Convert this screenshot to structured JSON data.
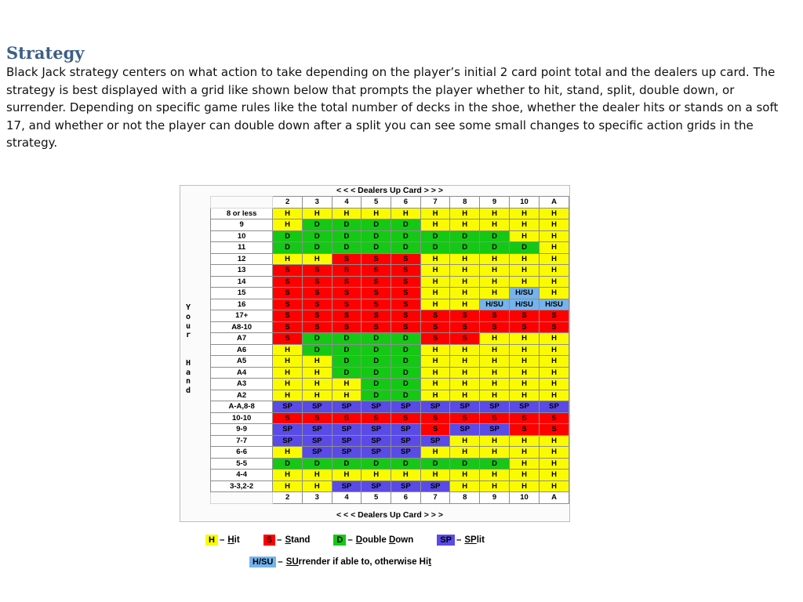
{
  "heading": "Strategy",
  "intro": "Black Jack strategy centers on what action to take depending on the player’s initial 2 card point total and the dealers up card. The strategy is best displayed with a grid like shown below that prompts the player whether to hit, stand, split, double down, or surrender.  Depending on specific game rules like the total number of decks in the shoe, whether the dealer hits or stands on a soft 17, and whether or not the player can double down after a split you can see some small changes to specific action grids in the strategy.",
  "chart": {
    "caption_top": "< < <  Dealers Up Card  > > >",
    "caption_bottom": "< < < Dealers Up Card > > >",
    "y_label": "Y o u r   H a n d",
    "dealer_cards": [
      "2",
      "3",
      "4",
      "5",
      "6",
      "7",
      "8",
      "9",
      "10",
      "A"
    ],
    "rows": [
      {
        "hand": "8 or less",
        "actions": [
          "H",
          "H",
          "H",
          "H",
          "H",
          "H",
          "H",
          "H",
          "H",
          "H"
        ]
      },
      {
        "hand": "9",
        "actions": [
          "H",
          "D",
          "D",
          "D",
          "D",
          "H",
          "H",
          "H",
          "H",
          "H"
        ]
      },
      {
        "hand": "10",
        "actions": [
          "D",
          "D",
          "D",
          "D",
          "D",
          "D",
          "D",
          "D",
          "H",
          "H"
        ]
      },
      {
        "hand": "11",
        "actions": [
          "D",
          "D",
          "D",
          "D",
          "D",
          "D",
          "D",
          "D",
          "D",
          "H"
        ]
      },
      {
        "hand": "12",
        "actions": [
          "H",
          "H",
          "S",
          "S",
          "S",
          "H",
          "H",
          "H",
          "H",
          "H"
        ]
      },
      {
        "hand": "13",
        "actions": [
          "S",
          "S",
          "S",
          "S",
          "S",
          "H",
          "H",
          "H",
          "H",
          "H"
        ]
      },
      {
        "hand": "14",
        "actions": [
          "S",
          "S",
          "S",
          "S",
          "S",
          "H",
          "H",
          "H",
          "H",
          "H"
        ]
      },
      {
        "hand": "15",
        "actions": [
          "S",
          "S",
          "S",
          "S",
          "S",
          "H",
          "H",
          "H",
          "H/SU",
          "H"
        ]
      },
      {
        "hand": "16",
        "actions": [
          "S",
          "S",
          "S",
          "S",
          "S",
          "H",
          "H",
          "H/SU",
          "H/SU",
          "H/SU"
        ]
      },
      {
        "hand": "17+",
        "actions": [
          "S",
          "S",
          "S",
          "S",
          "S",
          "S",
          "S",
          "S",
          "S",
          "S"
        ]
      },
      {
        "hand": "A8-10",
        "actions": [
          "S",
          "S",
          "S",
          "S",
          "S",
          "S",
          "S",
          "S",
          "S",
          "S"
        ]
      },
      {
        "hand": "A7",
        "actions": [
          "S",
          "D",
          "D",
          "D",
          "D",
          "S",
          "S",
          "H",
          "H",
          "H"
        ]
      },
      {
        "hand": "A6",
        "actions": [
          "H",
          "D",
          "D",
          "D",
          "D",
          "H",
          "H",
          "H",
          "H",
          "H"
        ]
      },
      {
        "hand": "A5",
        "actions": [
          "H",
          "H",
          "D",
          "D",
          "D",
          "H",
          "H",
          "H",
          "H",
          "H"
        ]
      },
      {
        "hand": "A4",
        "actions": [
          "H",
          "H",
          "D",
          "D",
          "D",
          "H",
          "H",
          "H",
          "H",
          "H"
        ]
      },
      {
        "hand": "A3",
        "actions": [
          "H",
          "H",
          "H",
          "D",
          "D",
          "H",
          "H",
          "H",
          "H",
          "H"
        ]
      },
      {
        "hand": "A2",
        "actions": [
          "H",
          "H",
          "H",
          "D",
          "D",
          "H",
          "H",
          "H",
          "H",
          "H"
        ]
      },
      {
        "hand": "A-A,8-8",
        "actions": [
          "SP",
          "SP",
          "SP",
          "SP",
          "SP",
          "SP",
          "SP",
          "SP",
          "SP",
          "SP"
        ]
      },
      {
        "hand": "10-10",
        "actions": [
          "S",
          "S",
          "S",
          "S",
          "S",
          "S",
          "S",
          "S",
          "S",
          "S"
        ]
      },
      {
        "hand": "9-9",
        "actions": [
          "SP",
          "SP",
          "SP",
          "SP",
          "SP",
          "S",
          "SP",
          "SP",
          "S",
          "S"
        ]
      },
      {
        "hand": "7-7",
        "actions": [
          "SP",
          "SP",
          "SP",
          "SP",
          "SP",
          "SP",
          "H",
          "H",
          "H",
          "H"
        ]
      },
      {
        "hand": "6-6",
        "actions": [
          "H",
          "SP",
          "SP",
          "SP",
          "SP",
          "H",
          "H",
          "H",
          "H",
          "H"
        ]
      },
      {
        "hand": "5-5",
        "actions": [
          "D",
          "D",
          "D",
          "D",
          "D",
          "D",
          "D",
          "D",
          "H",
          "H"
        ]
      },
      {
        "hand": "4-4",
        "actions": [
          "H",
          "H",
          "H",
          "H",
          "H",
          "H",
          "H",
          "H",
          "H",
          "H"
        ]
      },
      {
        "hand": "3-3,2-2",
        "actions": [
          "H",
          "H",
          "SP",
          "SP",
          "SP",
          "SP",
          "H",
          "H",
          "H",
          "H"
        ]
      }
    ]
  },
  "colors": {
    "H": "#fbfb00",
    "S": "#ff0000",
    "D": "#15c815",
    "SP": "#5a4be6",
    "H/SU": "#74b3ee"
  },
  "legend": [
    {
      "code": "H",
      "dash": "–",
      "text": "Hit"
    },
    {
      "code": "S",
      "dash": "–",
      "text": "Stand"
    },
    {
      "code": "D",
      "dash": "–",
      "text": "Double Down"
    },
    {
      "code": "SP",
      "dash": "–",
      "text": "SPlit"
    },
    {
      "code": "H/SU",
      "dash": "–",
      "text": "SUrrender if able to, otherwise Hit"
    }
  ]
}
